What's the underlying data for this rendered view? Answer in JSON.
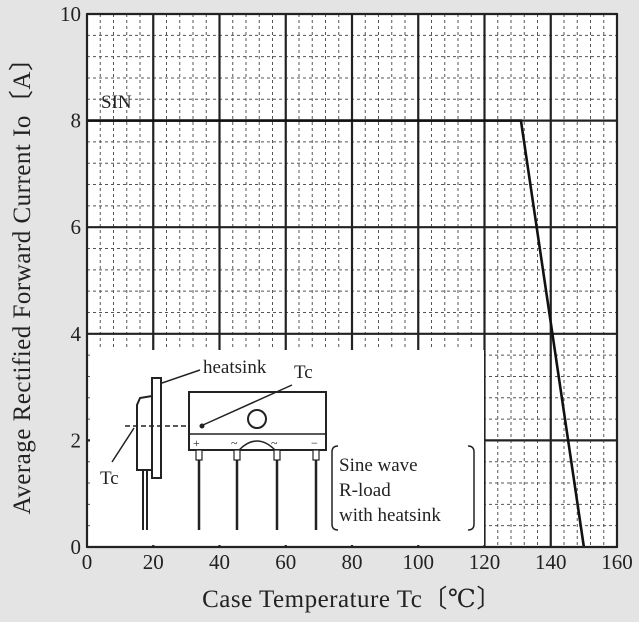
{
  "chart_data": {
    "type": "line",
    "xlabel": "Case Temperature  Tc〔℃〕",
    "ylabel": "Average Rectified Forward Current  Io〔A〕",
    "xlim": [
      0,
      160
    ],
    "ylim": [
      0,
      10
    ],
    "x_ticks": [
      "0",
      "20",
      "40",
      "60",
      "80",
      "100",
      "120",
      "140",
      "160"
    ],
    "y_ticks": [
      "0",
      "2",
      "4",
      "6",
      "8",
      "10"
    ],
    "grid": true,
    "series": [
      {
        "name": "SIN",
        "x": [
          0,
          131,
          150
        ],
        "y": [
          8,
          8,
          0
        ]
      }
    ],
    "annotations": {
      "series_label": "SIN",
      "heatsink_label": "heatsink",
      "tc_label_top": "Tc",
      "tc_label_side": "Tc",
      "condition_lines": [
        "Sine wave",
        "R-load",
        "with heatsink"
      ],
      "pin_marks": [
        "+",
        "~",
        "~",
        "−"
      ]
    }
  }
}
